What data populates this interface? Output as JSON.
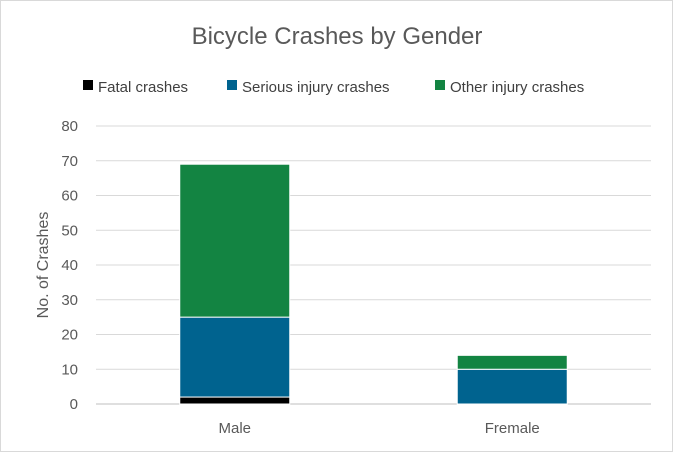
{
  "chart_data": {
    "type": "bar",
    "stacked": true,
    "title": "Bicycle Crashes by Gender",
    "xlabel": "",
    "ylabel": "No. of Crashes",
    "categories": [
      "Male",
      "Fremale"
    ],
    "ylim": [
      0,
      80
    ],
    "yticks": [
      0,
      10,
      20,
      30,
      40,
      50,
      60,
      70,
      80
    ],
    "grid": true,
    "legend_position": "top",
    "series": [
      {
        "name": "Fatal crashes",
        "color": "#000000",
        "values": [
          2,
          0
        ]
      },
      {
        "name": "Serious injury crashes",
        "color": "#00638f",
        "values": [
          23,
          10
        ]
      },
      {
        "name": "Other injury crashes",
        "color": "#138442",
        "values": [
          44,
          4
        ]
      }
    ]
  }
}
